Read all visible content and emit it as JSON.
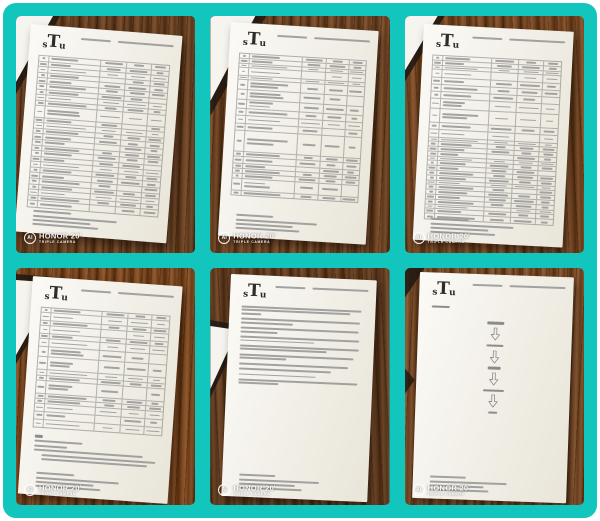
{
  "frame": {
    "background": "#12c6be",
    "border_color": "#ffffff"
  },
  "logo": {
    "pre": "s",
    "mid": "T",
    "post": "u"
  },
  "watermark": {
    "badge": "AI",
    "line1": "HONOR 20",
    "sup": "i",
    "line2": "TRIPLE CAMERA"
  },
  "photos": [
    {
      "name": "report-table-page-1",
      "header_segments": [
        30,
        56
      ],
      "table": {
        "cols": [
          8,
          40,
          20,
          19,
          13
        ],
        "unit": 5.6,
        "row_heights": [
          1,
          1,
          1,
          1,
          1,
          1,
          1,
          1,
          1,
          2,
          1,
          1,
          1,
          1,
          1,
          1,
          1,
          1,
          1,
          1,
          1,
          1,
          1,
          1,
          1,
          1
        ]
      },
      "contact_lines": [
        30,
        66,
        46,
        52
      ]
    },
    {
      "name": "report-table-page-2",
      "header_segments": [
        30,
        56
      ],
      "table": {
        "cols": [
          8,
          42,
          19,
          18,
          13
        ],
        "unit": 4.8,
        "row_heights": [
          1,
          1,
          1,
          1.5,
          1,
          2,
          2,
          2,
          1.5,
          1.5,
          1.5,
          4.5,
          1,
          1.5,
          1,
          1,
          1,
          2.5,
          1
        ]
      },
      "contact_lines": [
        30,
        66,
        46,
        52
      ]
    },
    {
      "name": "report-table-page-3",
      "header_segments": [
        30,
        56
      ],
      "table": {
        "cols": [
          8,
          38,
          21,
          20,
          13
        ],
        "unit": 4.8,
        "row_heights": [
          1,
          1,
          1,
          1.5,
          1.5,
          1.5,
          1.5,
          2,
          3,
          1.5,
          1.5,
          1,
          1,
          1,
          1,
          1,
          1,
          1,
          1,
          1,
          1,
          1,
          1,
          1,
          1,
          1,
          1,
          1
        ]
      },
      "contact_lines": [
        30,
        66,
        46,
        52
      ]
    },
    {
      "name": "report-table-page-4-with-notes",
      "header_segments": [
        30,
        56
      ],
      "table": {
        "cols": [
          8,
          40,
          20,
          19,
          13
        ],
        "unit": 5.2,
        "row_heights": [
          1,
          1.5,
          1,
          1.5,
          1,
          1.5,
          2,
          2.5,
          1,
          1,
          2.5,
          1,
          1,
          1.5,
          1.5,
          1.5
        ]
      },
      "notes": {
        "title": 6,
        "lines": [
          38,
          26,
          86
        ],
        "para": [
          90,
          84
        ]
      },
      "contact_lines": [
        30,
        66,
        46,
        52
      ]
    },
    {
      "name": "report-text-page",
      "header_segments": [
        30,
        56
      ],
      "paragraphs": [
        [
          97,
          88,
          16
        ],
        [
          96,
          42
        ],
        [
          95,
          30
        ],
        [
          96,
          60
        ],
        [
          96,
          70
        ],
        [
          92,
          38
        ],
        [
          88
        ],
        [
          74
        ],
        [
          62
        ],
        [
          96,
          32
        ]
      ],
      "contact_lines": [
        30,
        66,
        46,
        52
      ]
    },
    {
      "name": "report-flowchart-page",
      "header_segments": [
        30,
        56
      ],
      "flow": {
        "lead": 18,
        "steps": [
          17,
          17,
          13,
          21,
          9
        ]
      },
      "contact_lines": [
        28,
        60,
        42,
        46
      ]
    }
  ]
}
